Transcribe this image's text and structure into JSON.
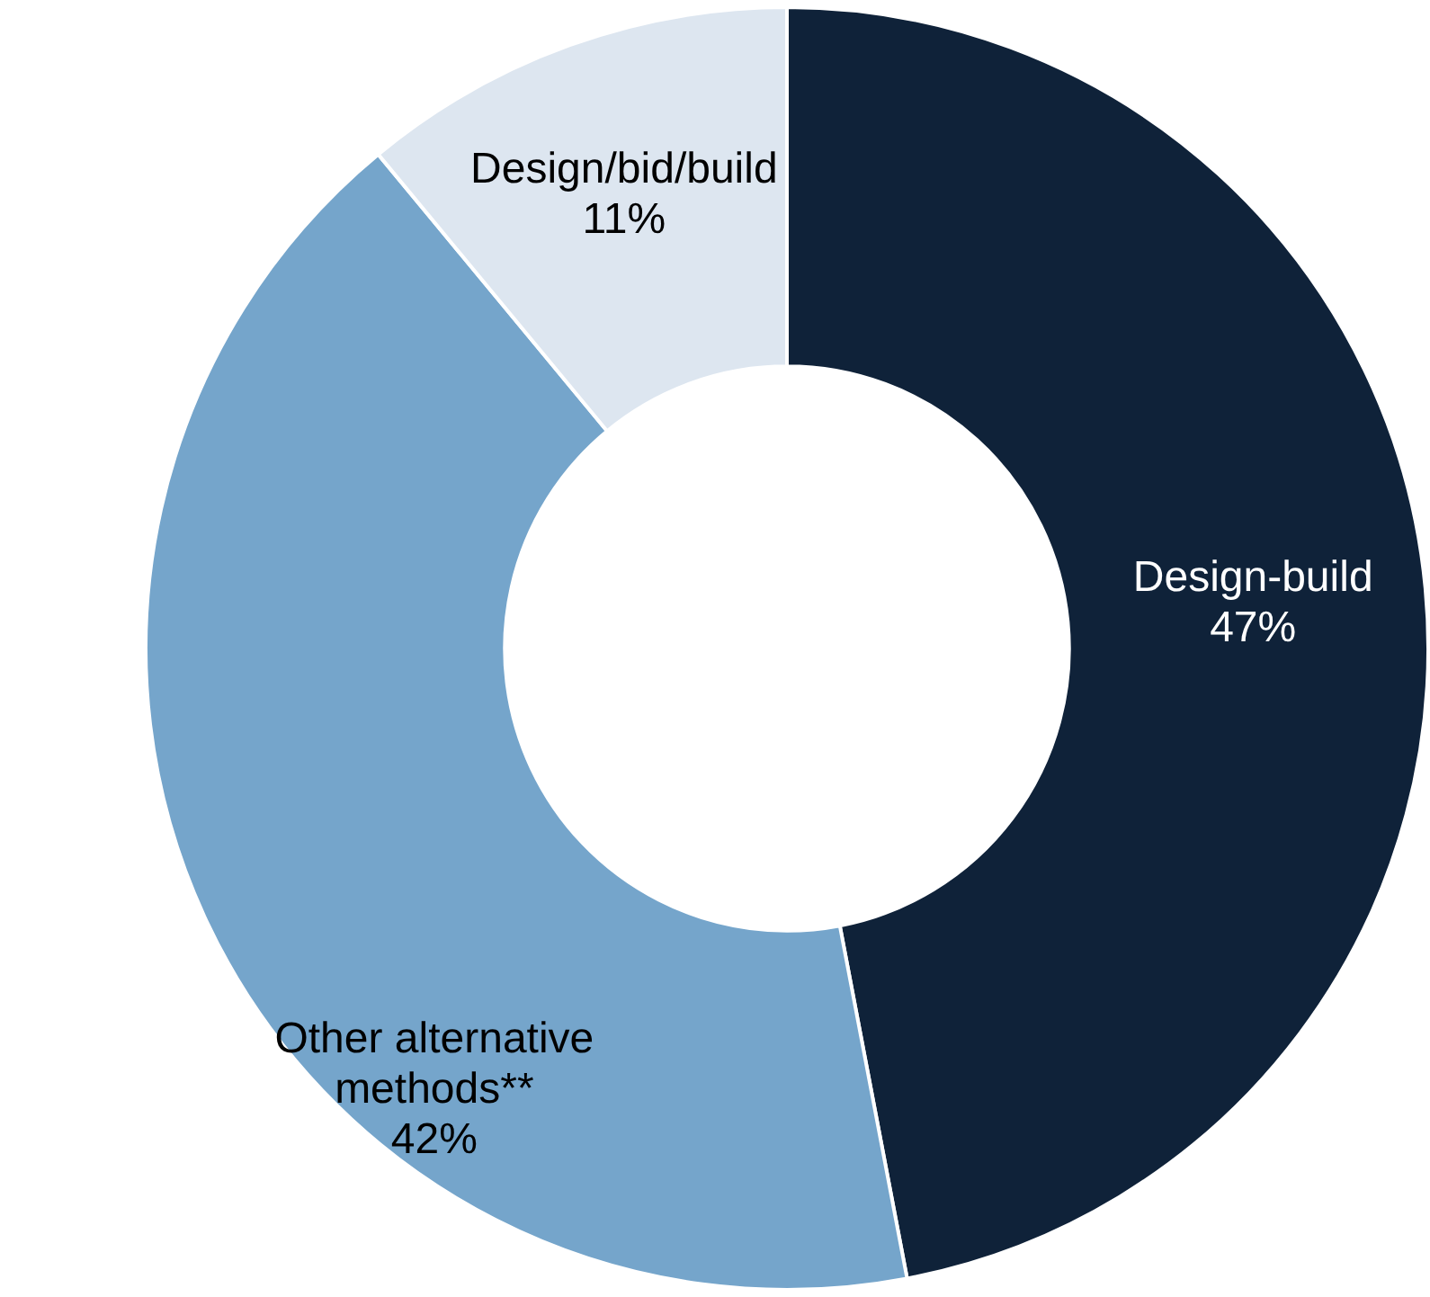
{
  "chart_data": {
    "type": "donut",
    "categories": [
      "Design-build",
      "Other alternative methods**",
      "Design/bid/build"
    ],
    "values": [
      47,
      42,
      11
    ],
    "colors": [
      "#0f2239",
      "#75a5cb",
      "#dde6f0"
    ],
    "value_labels": [
      "47%",
      "42%",
      "11%"
    ],
    "legend": false
  }
}
